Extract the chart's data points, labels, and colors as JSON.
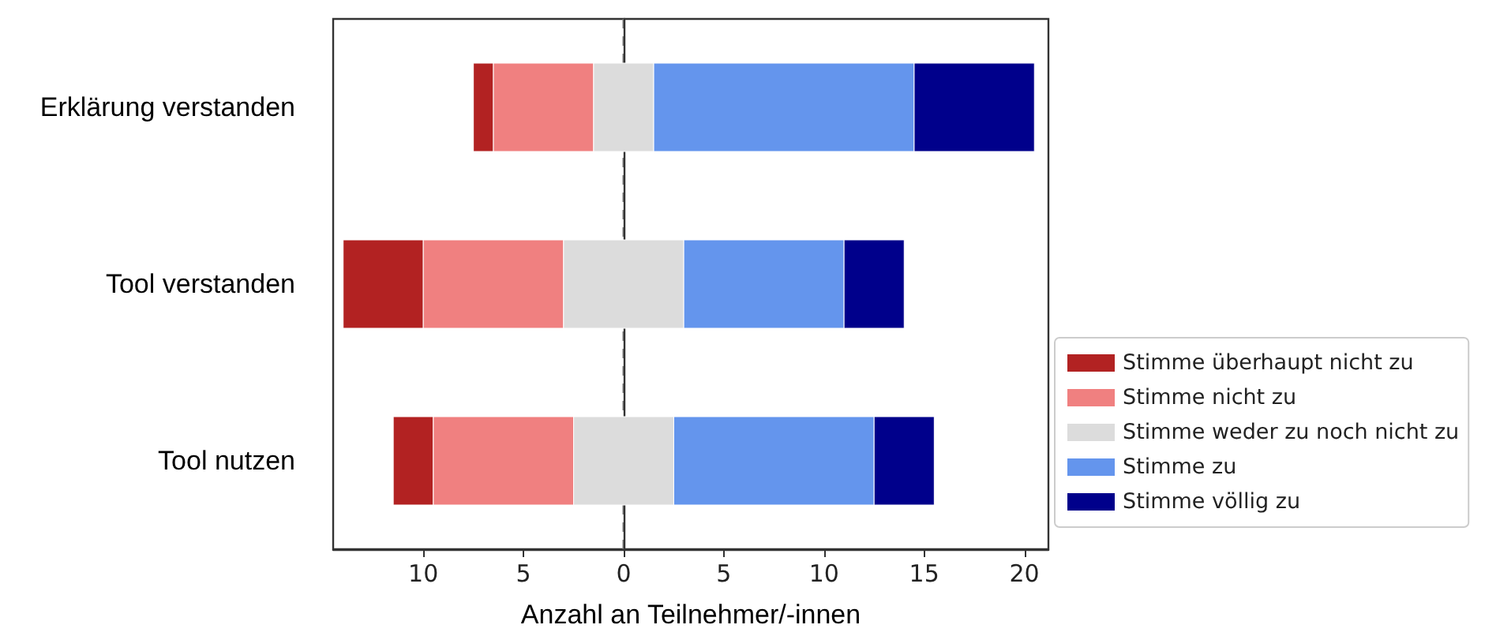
{
  "chart_data": {
    "type": "bar",
    "orientation": "horizontal",
    "xlabel": "Anzahl an Teilnehmer/-innen",
    "categories": [
      "Erklärung verstanden",
      "Tool verstanden",
      "Tool nutzen"
    ],
    "series": [
      {
        "name": "Stimme überhaupt nicht zu",
        "color": "#b22222",
        "values": [
          1,
          4,
          2
        ],
        "base": [
          -7.5,
          -14,
          -11.5
        ]
      },
      {
        "name": "Stimme nicht zu",
        "color": "#f08080",
        "values": [
          5,
          7,
          7
        ],
        "base": [
          -6.5,
          -10,
          -9.5
        ]
      },
      {
        "name": "Stimme weder zu noch nicht zu",
        "color": "#dcdcdc",
        "values": [
          3,
          6,
          5
        ],
        "base": [
          -1.5,
          -3,
          -2.5
        ]
      },
      {
        "name": "Stimme zu",
        "color": "#6495ed",
        "values": [
          13,
          8,
          10
        ],
        "base": [
          1.5,
          3,
          2.5
        ]
      },
      {
        "name": "Stimme völlig zu",
        "color": "#00008b",
        "values": [
          6,
          3,
          3
        ],
        "base": [
          14.5,
          11,
          12.5
        ]
      }
    ],
    "xlim": [
      -14.5,
      21.2
    ],
    "xticks": [
      {
        "value": -10,
        "label": "10"
      },
      {
        "value": -5,
        "label": "5"
      },
      0,
      5,
      10,
      15,
      20
    ],
    "ref_lines": [
      {
        "axis": "x",
        "value": 0,
        "color": "#808080",
        "line_style": "dashed"
      }
    ],
    "grid": false,
    "legend": "bottom right"
  }
}
